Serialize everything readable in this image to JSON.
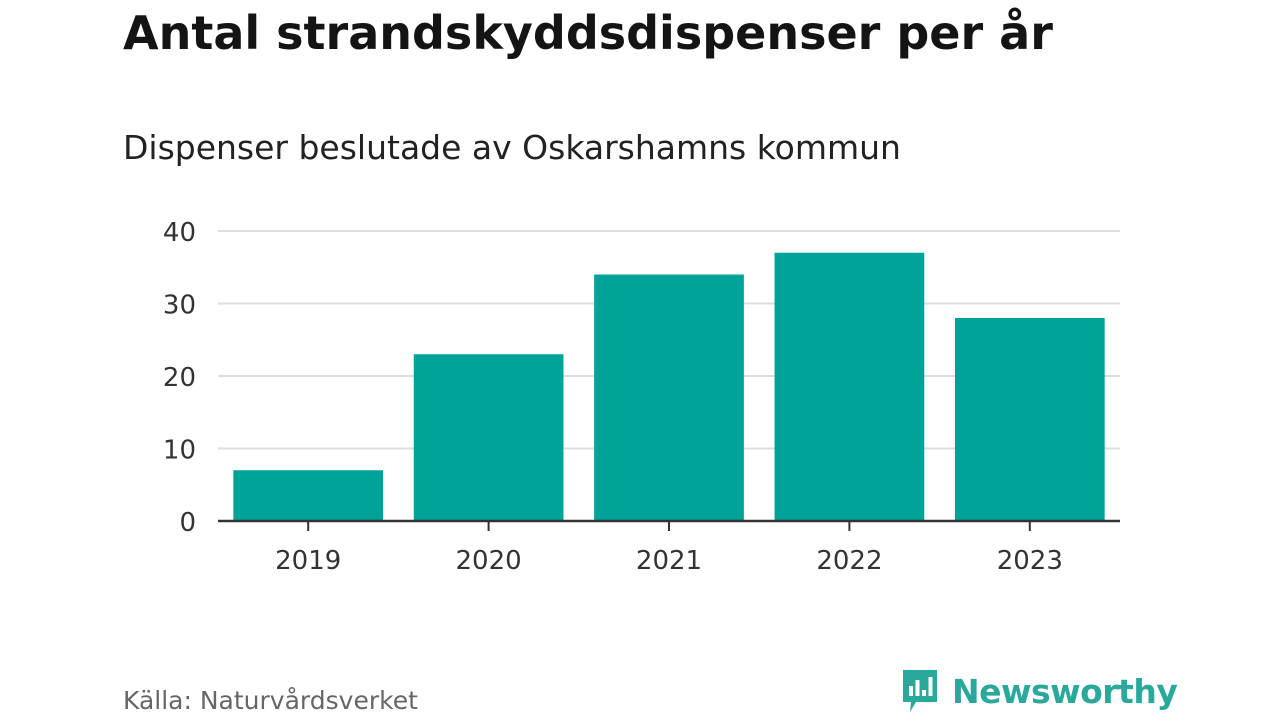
{
  "title": "Antal strandskyddsdispenser per år",
  "subtitle": "Dispenser beslutade av Oskarshamns kommun",
  "source": "Källa: Naturvårdsverket",
  "brand": {
    "name": "Newsworthy",
    "icon": "newsworthy-logo-icon",
    "color": "#2aa89b"
  },
  "colors": {
    "bar": "#00a398",
    "grid": "#dddddd",
    "axis": "#333333"
  },
  "chart_data": {
    "type": "bar",
    "categories": [
      "2019",
      "2020",
      "2021",
      "2022",
      "2023"
    ],
    "values": [
      7,
      23,
      34,
      37,
      28
    ],
    "ylim": [
      0,
      40
    ],
    "yticks": [
      0,
      10,
      20,
      30,
      40
    ],
    "grid": true,
    "legend": "none"
  }
}
